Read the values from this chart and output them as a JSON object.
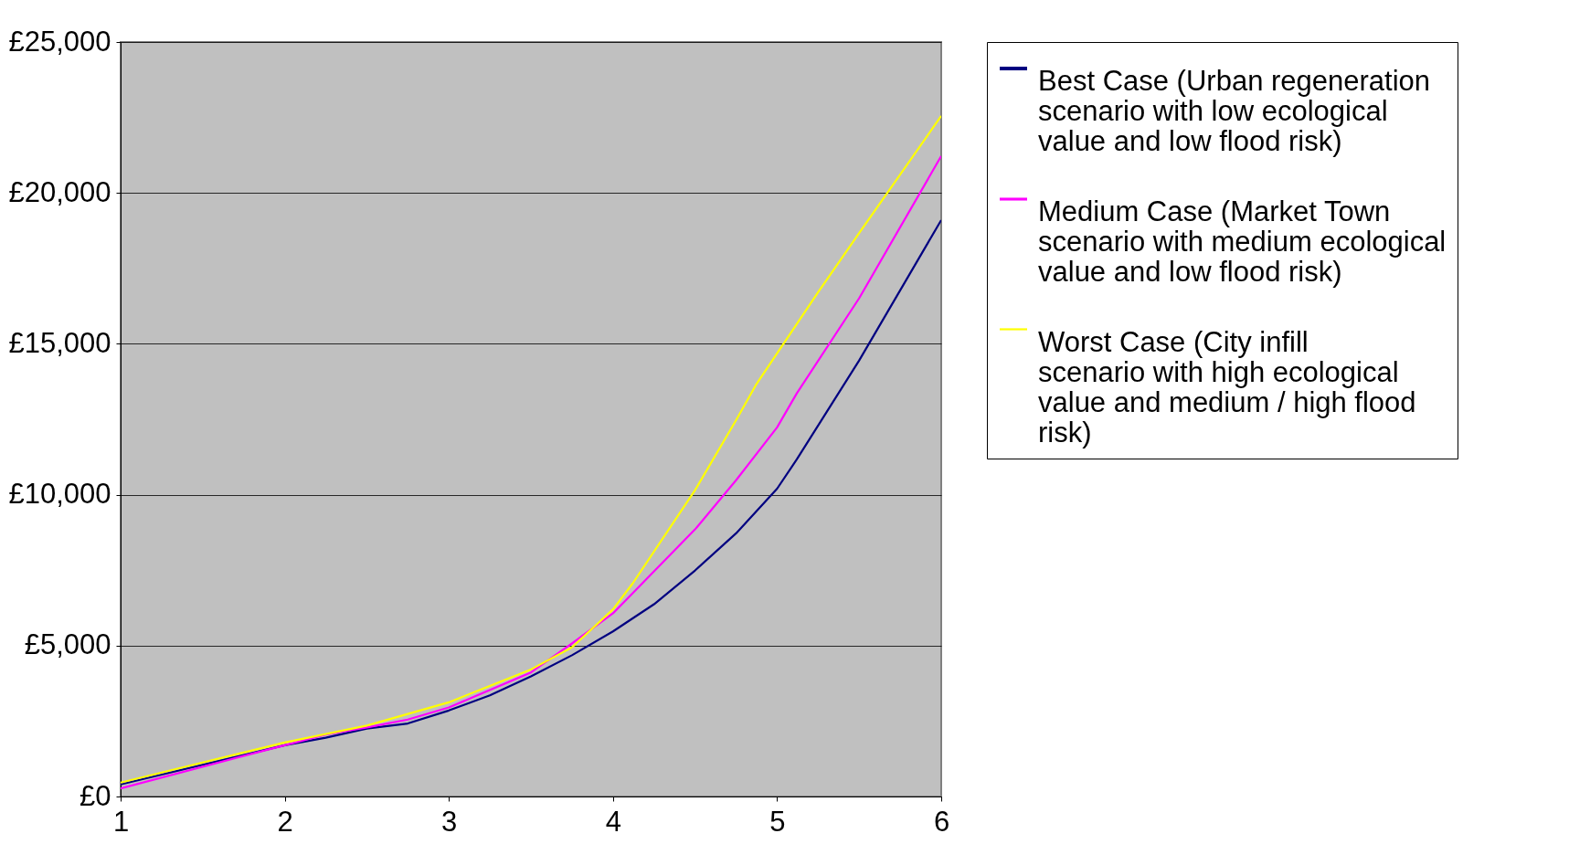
{
  "chart_data": {
    "type": "line",
    "xlim": [
      1,
      6
    ],
    "xticks": [
      1,
      2,
      3,
      4,
      5,
      6
    ],
    "ylim": [
      0,
      25000
    ],
    "yticks": [
      {
        "value": 0,
        "label": "£0"
      },
      {
        "value": 5000,
        "label": "£5,000"
      },
      {
        "value": 10000,
        "label": "£10,000"
      },
      {
        "value": 15000,
        "label": "£15,000"
      },
      {
        "value": 20000,
        "label": "£20,000"
      },
      {
        "value": 25000,
        "label": "£25,000"
      }
    ],
    "grid": "y",
    "legend": "right",
    "marker": "none",
    "line_style": "solid",
    "series": [
      {
        "name": "Best Case (Urban regeneration scenario with low ecological value and low flood risk)",
        "color": "#000080",
        "x": [
          1,
          2,
          2.25,
          2.5,
          2.75,
          3,
          3.25,
          3.5,
          3.75,
          4,
          4.25,
          4.5,
          4.75,
          5,
          5.12,
          5.5,
          6
        ],
        "values": [
          400,
          1700,
          1950,
          2250,
          2420,
          2850,
          3350,
          3980,
          4680,
          5470,
          6370,
          7490,
          8720,
          10200,
          11170,
          14450,
          19100
        ]
      },
      {
        "name": "Medium Case (Market Town scenario with medium ecological value and low flood risk)",
        "color": "#ff00ff",
        "x": [
          1,
          2,
          2.25,
          2.5,
          2.75,
          3,
          3.5,
          3.75,
          4,
          4.5,
          4.75,
          5,
          5.12,
          5.5,
          6
        ],
        "values": [
          270,
          1700,
          2050,
          2290,
          2550,
          2950,
          4110,
          5070,
          6070,
          8850,
          10480,
          12230,
          13360,
          16510,
          21220
        ]
      },
      {
        "name": "Worst Case (City infill scenario with high ecological value and medium / high flood risk)",
        "color": "#ffff00",
        "x": [
          1,
          2,
          2.5,
          3,
          3.5,
          3.75,
          4,
          4.12,
          4.5,
          4.75,
          4.87,
          5.25,
          5.5,
          6
        ],
        "values": [
          460,
          1790,
          2350,
          3120,
          4210,
          4940,
          6200,
          7060,
          10150,
          12470,
          13630,
          16710,
          18670,
          22550
        ]
      }
    ]
  }
}
